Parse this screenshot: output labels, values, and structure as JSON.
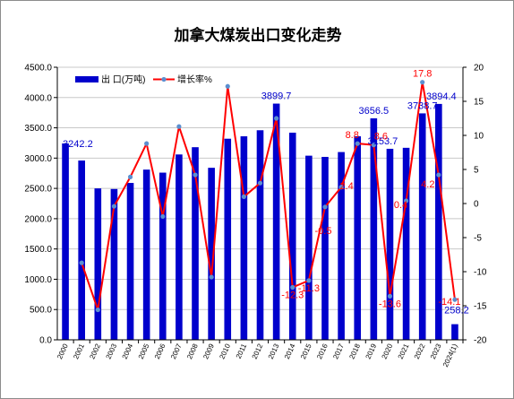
{
  "chart_data": {
    "type": "bar",
    "title": "加拿大煤炭出口变化走势",
    "categories": [
      "2000",
      "2001",
      "2002",
      "2003",
      "2004",
      "2005",
      "2006",
      "2007",
      "2008",
      "2009",
      "2010",
      "2011",
      "2012",
      "2013",
      "2014",
      "2015",
      "2016",
      "2017",
      "2018",
      "2019",
      "2020",
      "2021",
      "2022",
      "2023",
      "2024(1)"
    ],
    "series": [
      {
        "name": "出 口(万吨)",
        "type": "bar",
        "axis": "left",
        "color": "#0000cc",
        "values": [
          3242.2,
          2960,
          2500,
          2490,
          2590,
          2810,
          2760,
          3060,
          3180,
          2840,
          3320,
          3360,
          3460,
          3899.7,
          3420,
          3040,
          3020,
          3100,
          3360,
          3656.5,
          3153.7,
          3170,
          3738.7,
          3894.4,
          258.2
        ]
      },
      {
        "name": "增长率%",
        "type": "line",
        "axis": "right",
        "color": "#ff0000",
        "marker_color": "#5b8fd0",
        "values": [
          null,
          -8.7,
          -15.6,
          -0.4,
          3.9,
          8.8,
          -1.9,
          11.3,
          4.2,
          -10.8,
          17.2,
          1.0,
          3.0,
          12.5,
          -12.3,
          -11.3,
          -0.5,
          2.4,
          8.8,
          8.6,
          -13.6,
          0.4,
          17.8,
          4.2,
          -14.1
        ]
      }
    ],
    "bar_labels": [
      {
        "index": 0,
        "text": "3242.2"
      },
      {
        "index": 13,
        "text": "3899.7"
      },
      {
        "index": 19,
        "text": "3656.5"
      },
      {
        "index": 20,
        "text": "3153.7"
      },
      {
        "index": 22,
        "text": "3738.7"
      },
      {
        "index": 23,
        "text": "3894.4"
      },
      {
        "index": 24,
        "text": "258.2"
      }
    ],
    "line_labels": [
      {
        "index": 14,
        "text": "-12.3"
      },
      {
        "index": 15,
        "text": "-11.3"
      },
      {
        "index": 16,
        "text": "-0.5"
      },
      {
        "index": 17,
        "text": "2.4"
      },
      {
        "index": 18,
        "text": "8.8"
      },
      {
        "index": 19,
        "text": "8.6"
      },
      {
        "index": 20,
        "text": "-13.6"
      },
      {
        "index": 21,
        "text": "0.4"
      },
      {
        "index": 22,
        "text": "17.8"
      },
      {
        "index": 23,
        "text": "4.2"
      },
      {
        "index": 24,
        "text": "-14.1"
      }
    ],
    "left_axis": {
      "min": 0,
      "max": 4500,
      "step": 500,
      "tick_labels": [
        "0.0",
        "500.0",
        "1000.0",
        "1500.0",
        "2000.0",
        "2500.0",
        "3000.0",
        "3500.0",
        "4000.0",
        "4500.0"
      ]
    },
    "right_axis": {
      "min": -20,
      "max": 20,
      "step": 5,
      "tick_labels": [
        "-20",
        "-15",
        "-10",
        "-5",
        "0",
        "5",
        "10",
        "15",
        "20"
      ]
    },
    "grid": true,
    "legend": "top-left"
  }
}
